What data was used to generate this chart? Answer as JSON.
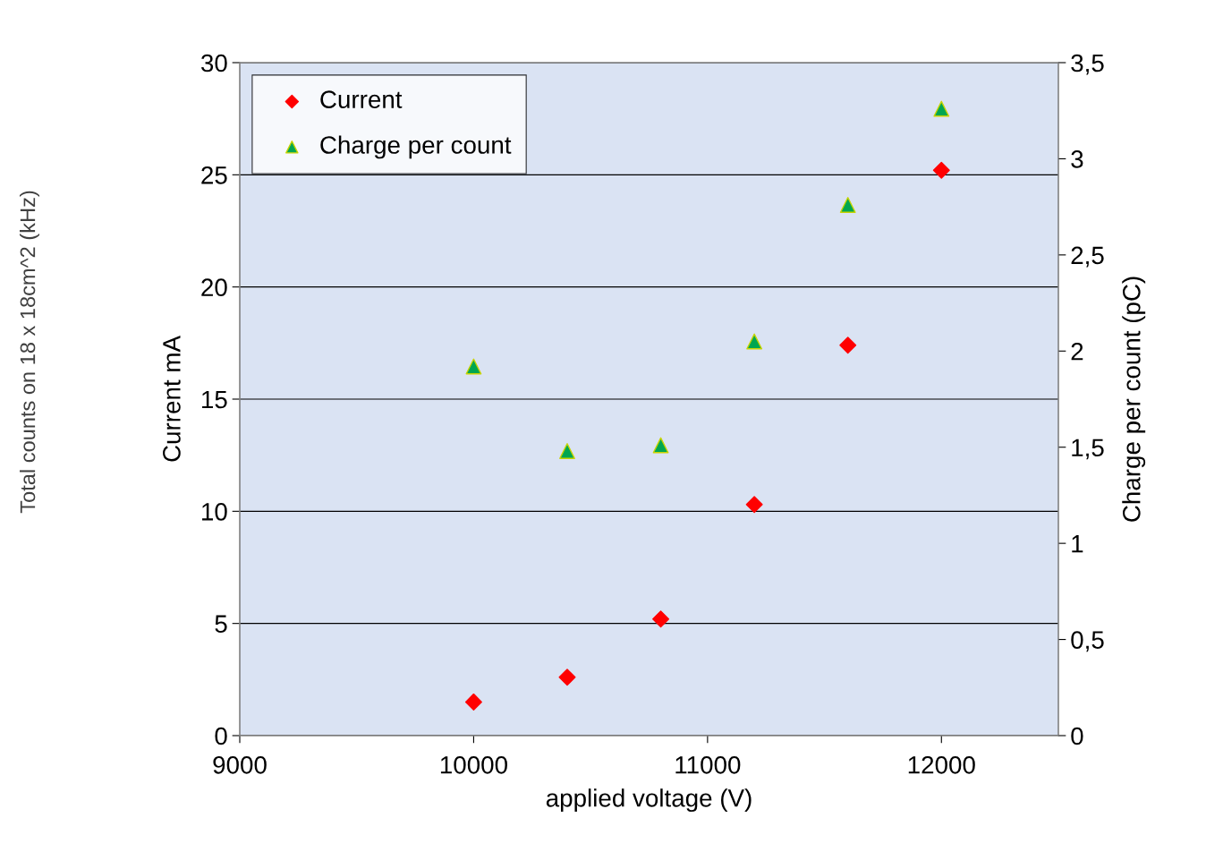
{
  "chart_data": {
    "type": "scatter",
    "xlabel": "applied voltage (V)",
    "ylabel": "Current mA",
    "y2label": "Charge per count (pC)",
    "annotations": [
      "Total counts on 18 x 18cm^2 (kHz)"
    ],
    "x": [
      10000,
      10400,
      10800,
      11200,
      11600,
      12000
    ],
    "series": [
      {
        "name": "Current",
        "color": "#ff0000",
        "marker": "diamond",
        "values": [
          1.5,
          2.6,
          5.2,
          10.3,
          17.4,
          25.2
        ]
      },
      {
        "name": "Charge per count",
        "color": "#00a650",
        "marker": "triangle",
        "axis": "y2",
        "values": [
          1.92,
          1.48,
          1.51,
          2.05,
          2.76,
          3.26
        ]
      }
    ],
    "xlim": [
      9000,
      12500
    ],
    "xticks": [
      9000,
      10000,
      11000,
      12000
    ],
    "ylim": [
      0,
      30
    ],
    "yticks": [
      0,
      5,
      10,
      15,
      20,
      25,
      30
    ],
    "y2lim": [
      0,
      3.5
    ],
    "y2ticks": [
      0,
      {
        "value": 0.5,
        "label": "0,5"
      },
      1,
      {
        "value": 1.5,
        "label": "1,5"
      },
      2,
      {
        "value": 2.5,
        "label": "2,5"
      },
      3,
      {
        "value": 3.5,
        "label": "3,5"
      }
    ],
    "grid": "y",
    "legend": "top left"
  }
}
